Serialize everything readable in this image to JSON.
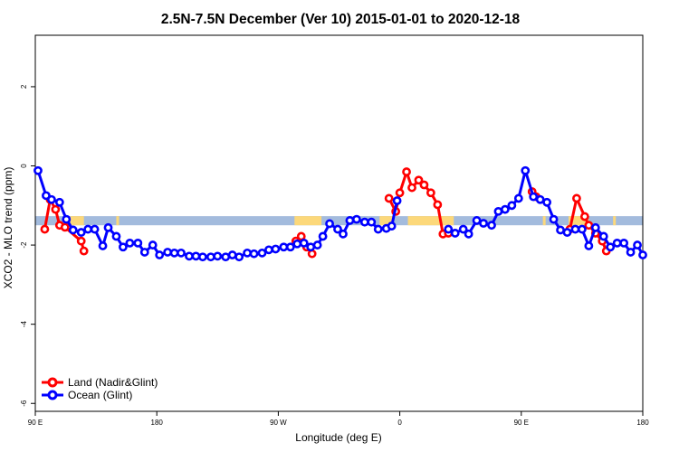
{
  "chart_data": {
    "type": "line",
    "title": "2.5N-7.5N December (Ver 10)   2015-01-01 to 2020-12-18",
    "xlabel": "Longitude (deg E)",
    "ylabel": "XCO2 - MLO trend (ppm)",
    "xlim": [
      90,
      540
    ],
    "ylim": [
      -6.2,
      3.3
    ],
    "xticks": [
      90,
      180,
      270,
      360,
      450,
      540
    ],
    "xtick_labels": [
      "90 E",
      "180",
      "90 W",
      "0",
      "90 E",
      "180"
    ],
    "yticks": [
      -6,
      -4,
      -2,
      0,
      2
    ],
    "ytick_labels": [
      "-6",
      "-4",
      "-2",
      "0",
      "2"
    ],
    "legend_position": "bottom-left",
    "colors": {
      "land": "#ff0000",
      "ocean": "#0000ff",
      "ocean_band": "#a3bbdd",
      "land_band": "#fcd87a"
    },
    "band": {
      "y_range": [
        -1.5,
        -1.27
      ],
      "land_segments": [
        [
          116,
          126
        ],
        [
          150,
          152
        ],
        [
          282,
          302
        ],
        [
          345,
          355
        ],
        [
          366,
          400
        ],
        [
          466,
          468
        ],
        [
          485,
          500
        ],
        [
          518,
          520
        ]
      ]
    },
    "series": [
      {
        "name": "Land (Nadir&Glint)",
        "color": "#ff0000",
        "segments": [
          [
            [
              97,
              -1.6
            ],
            [
              101,
              -0.85
            ],
            [
              105,
              -1.1
            ],
            [
              108,
              -1.5
            ],
            [
              112,
              -1.55
            ],
            [
              124,
              -1.9
            ],
            [
              126,
              -2.15
            ]
          ],
          [
            [
              283,
              -1.9
            ],
            [
              287,
              -1.78
            ],
            [
              291,
              -2.05
            ],
            [
              295,
              -2.22
            ]
          ],
          [
            [
              352,
              -0.82
            ],
            [
              357,
              -1.15
            ],
            [
              360,
              -0.68
            ],
            [
              365,
              -0.15
            ],
            [
              369,
              -0.55
            ],
            [
              374,
              -0.36
            ],
            [
              378,
              -0.48
            ],
            [
              383,
              -0.68
            ],
            [
              388,
              -0.98
            ],
            [
              392,
              -1.72
            ],
            [
              396,
              -1.7
            ]
          ],
          [
            [
              458,
              -0.65
            ],
            [
              461,
              -0.78
            ]
          ],
          [
            [
              486,
              -1.6
            ],
            [
              491,
              -0.82
            ],
            [
              497,
              -1.28
            ],
            [
              500,
              -1.5
            ],
            [
              505,
              -1.7
            ],
            [
              510,
              -1.9
            ],
            [
              513,
              -2.15
            ]
          ]
        ]
      },
      {
        "name": "Ocean (Glint)",
        "color": "#0000ff",
        "segments": [
          [
            [
              92,
              -0.12
            ],
            [
              98,
              -0.75
            ],
            [
              102,
              -0.85
            ],
            [
              108,
              -0.92
            ],
            [
              113,
              -1.35
            ],
            [
              118,
              -1.62
            ],
            [
              124,
              -1.68
            ],
            [
              129,
              -1.6
            ],
            [
              134,
              -1.6
            ],
            [
              140,
              -2.02
            ],
            [
              144,
              -1.56
            ],
            [
              150,
              -1.78
            ],
            [
              155,
              -2.05
            ],
            [
              160,
              -1.95
            ],
            [
              166,
              -1.95
            ],
            [
              171,
              -2.18
            ],
            [
              177,
              -2.0
            ],
            [
              182,
              -2.25
            ],
            [
              188,
              -2.18
            ],
            [
              193,
              -2.2
            ],
            [
              198,
              -2.2
            ],
            [
              204,
              -2.28
            ],
            [
              209,
              -2.28
            ],
            [
              214,
              -2.3
            ],
            [
              220,
              -2.3
            ],
            [
              225,
              -2.28
            ],
            [
              231,
              -2.3
            ],
            [
              236,
              -2.25
            ],
            [
              241,
              -2.3
            ],
            [
              247,
              -2.2
            ],
            [
              252,
              -2.22
            ],
            [
              258,
              -2.2
            ],
            [
              263,
              -2.12
            ],
            [
              268,
              -2.1
            ],
            [
              274,
              -2.05
            ],
            [
              279,
              -2.05
            ],
            [
              284,
              -1.97
            ],
            [
              289,
              -1.95
            ],
            [
              294,
              -2.05
            ],
            [
              299,
              -2.0
            ],
            [
              303,
              -1.78
            ],
            [
              308,
              -1.46
            ],
            [
              314,
              -1.6
            ],
            [
              318,
              -1.72
            ],
            [
              323,
              -1.38
            ],
            [
              328,
              -1.35
            ],
            [
              334,
              -1.42
            ],
            [
              339,
              -1.42
            ],
            [
              344,
              -1.6
            ],
            [
              350,
              -1.58
            ],
            [
              354,
              -1.52
            ],
            [
              358,
              -0.88
            ]
          ],
          [
            [
              396,
              -1.6
            ],
            [
              401,
              -1.7
            ],
            [
              407,
              -1.6
            ],
            [
              411,
              -1.72
            ],
            [
              417,
              -1.38
            ],
            [
              422,
              -1.45
            ],
            [
              428,
              -1.5
            ],
            [
              433,
              -1.15
            ],
            [
              438,
              -1.1
            ],
            [
              443,
              -1.0
            ],
            [
              448,
              -0.82
            ],
            [
              453,
              -0.12
            ],
            [
              459,
              -0.78
            ],
            [
              464,
              -0.85
            ],
            [
              469,
              -0.92
            ],
            [
              474,
              -1.35
            ],
            [
              479,
              -1.62
            ],
            [
              484,
              -1.68
            ],
            [
              490,
              -1.6
            ],
            [
              495,
              -1.6
            ],
            [
              500,
              -2.02
            ],
            [
              505,
              -1.56
            ],
            [
              511,
              -1.78
            ],
            [
              516,
              -2.05
            ],
            [
              521,
              -1.95
            ],
            [
              526,
              -1.95
            ],
            [
              531,
              -2.18
            ],
            [
              536,
              -2.0
            ],
            [
              540,
              -2.25
            ]
          ]
        ]
      }
    ]
  }
}
